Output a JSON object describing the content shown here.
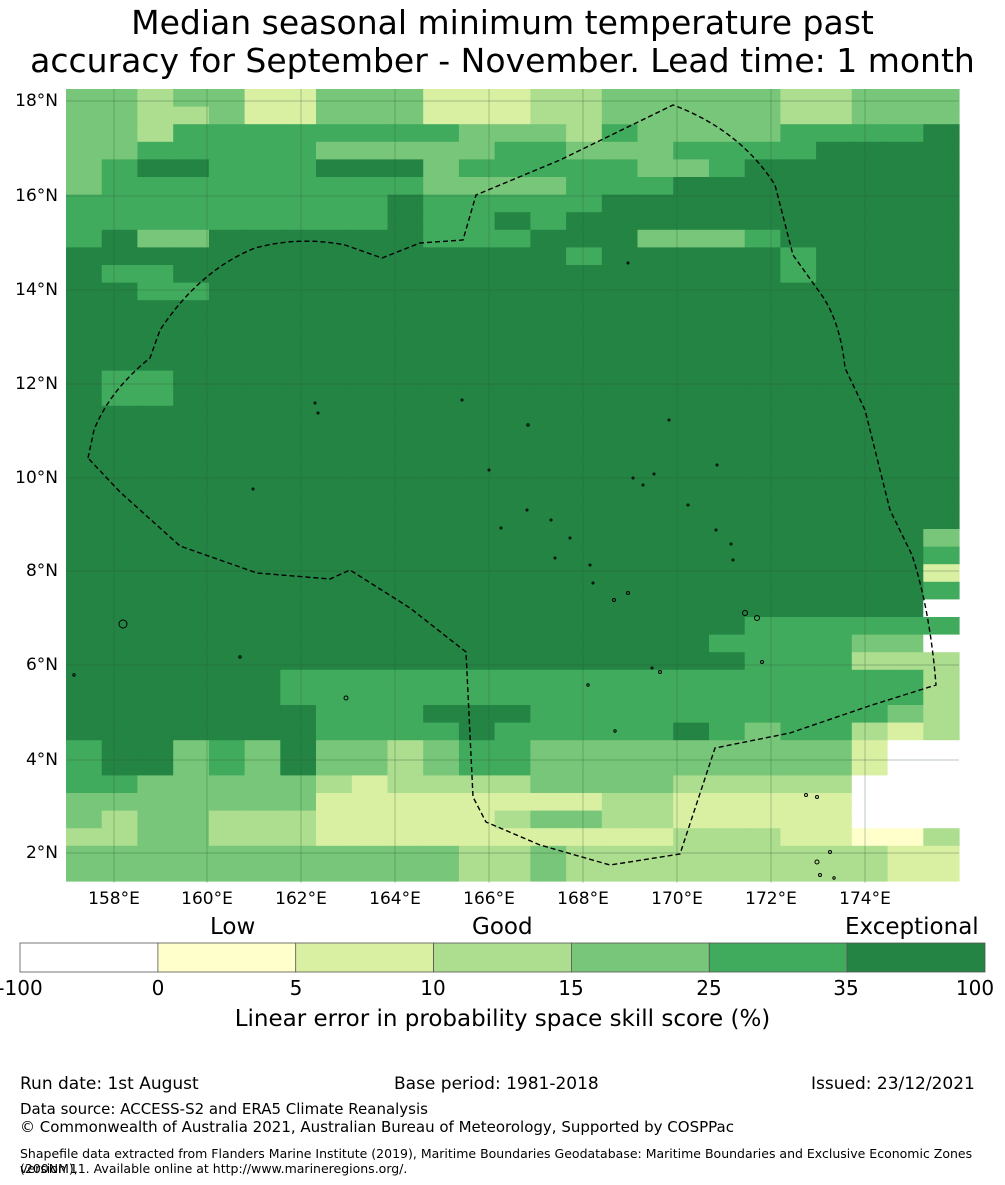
{
  "title": {
    "line1": "Median seasonal minimum temperature past",
    "line2": "accuracy for September - November. Lead time: 1 month"
  },
  "map": {
    "lat_labels": [
      "18°N",
      "16°N",
      "14°N",
      "12°N",
      "10°N",
      "8°N",
      "6°N",
      "4°N",
      "2°N"
    ],
    "lon_labels": [
      "158°E",
      "160°E",
      "162°E",
      "164°E",
      "166°E",
      "168°E",
      "170°E",
      "172°E",
      "174°E"
    ],
    "lon_range": [
      157,
      176
    ],
    "lat_range": [
      1.4,
      18.3
    ],
    "category_colors": [
      "#ffffff",
      "#ffffcc",
      "#d9f0a3",
      "#addd8e",
      "#78c679",
      "#41ab5d",
      "#238443"
    ],
    "boundary_color": "#000000"
  },
  "legend": {
    "category_labels": [
      "Low",
      "Good",
      "Exceptional"
    ],
    "ticks": [
      "-100",
      "0",
      "5",
      "10",
      "15",
      "25",
      "35",
      "100"
    ],
    "colors": [
      "#ffffff",
      "#ffffcc",
      "#d9f0a3",
      "#addd8e",
      "#78c679",
      "#41ab5d",
      "#238443"
    ],
    "title": "Linear error in probability space skill score (%)"
  },
  "footer": {
    "run_date": "Run date: 1st August",
    "base_period": "Base period: 1981-2018",
    "issued": "Issued: 23/12/2021",
    "data_source": "Data source: ACCESS-S2 and ERA5 Climate Reanalysis",
    "copyright": "© Commonwealth of Australia 2021, Australian Bureau of Meteorology, Supported by COSPPac",
    "shapefile_1": "Shapefile data extracted from Flanders Marine Institute (2019), Maritime Boundaries Geodatabase: Maritime Boundaries and Exclusive Economic Zones (200NM),",
    "shapefile_2": "version 11. Available online at http://www.marineregions.org/."
  }
}
